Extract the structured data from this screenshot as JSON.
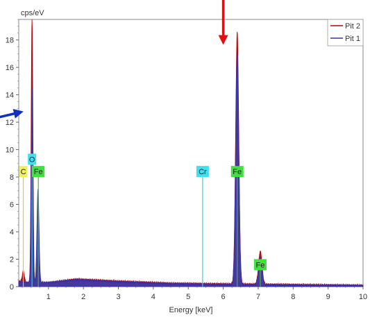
{
  "chart_data": {
    "type": "area",
    "title": "",
    "xlabel": "Energy [keV]",
    "ylabel": "cps/eV",
    "xlim": [
      0.15,
      10
    ],
    "ylim": [
      0,
      19.5
    ],
    "x_ticks": [
      1,
      2,
      3,
      4,
      5,
      6,
      7,
      8,
      9,
      10
    ],
    "y_ticks": [
      0,
      2,
      4,
      6,
      8,
      10,
      12,
      14,
      16,
      18
    ],
    "legend_position": "top-right",
    "series": [
      {
        "name": "Pit 2",
        "color": "#c00000",
        "fill": "#a3142a",
        "peaks": [
          {
            "center": 0.53,
            "height": 19.4,
            "width": 0.025
          },
          {
            "center": 0.7,
            "height": 2.0,
            "width": 0.03
          },
          {
            "center": 0.28,
            "height": 0.8,
            "width": 0.03
          },
          {
            "center": 6.4,
            "height": 18.4,
            "width": 0.045
          },
          {
            "center": 7.06,
            "height": 2.4,
            "width": 0.05
          }
        ],
        "background": [
          [
            0.15,
            0.4
          ],
          [
            0.4,
            0.3
          ],
          [
            1.0,
            0.3
          ],
          [
            1.8,
            0.55
          ],
          [
            3.0,
            0.4
          ],
          [
            4.5,
            0.25
          ],
          [
            6.0,
            0.2
          ],
          [
            8.0,
            0.15
          ],
          [
            10.0,
            0.1
          ]
        ]
      },
      {
        "name": "Pit 1",
        "color": "#3030b0",
        "fill": "#3c3caa",
        "peaks": [
          {
            "center": 0.53,
            "height": 14.2,
            "width": 0.025
          },
          {
            "center": 0.7,
            "height": 6.8,
            "width": 0.03
          },
          {
            "center": 6.4,
            "height": 17.0,
            "width": 0.045
          },
          {
            "center": 7.06,
            "height": 2.0,
            "width": 0.05
          }
        ],
        "background": [
          [
            0.15,
            0.35
          ],
          [
            0.4,
            0.3
          ],
          [
            1.0,
            0.3
          ],
          [
            1.8,
            0.5
          ],
          [
            3.0,
            0.35
          ],
          [
            4.5,
            0.2
          ],
          [
            6.0,
            0.15
          ],
          [
            8.0,
            0.1
          ],
          [
            10.0,
            0.08
          ]
        ]
      }
    ],
    "element_markers": [
      {
        "label": "C",
        "energy": 0.28,
        "box_y": 8.4,
        "color": "#f0f060",
        "line_color": "#d8d030"
      },
      {
        "label": "O",
        "energy": 0.53,
        "box_y": 9.3,
        "color": "#40e0f0",
        "line_color": "#40c8e0"
      },
      {
        "label": "Fe",
        "energy": 0.71,
        "box_y": 8.4,
        "color": "#40e040",
        "line_color": "#30c030"
      },
      {
        "label": "Cr",
        "energy": 5.41,
        "box_y": 8.4,
        "color": "#40e0f0",
        "line_color": "#40c8e0"
      },
      {
        "label": "Fe",
        "energy": 6.4,
        "box_y": 8.4,
        "color": "#40e040",
        "line_color": "#30c030"
      },
      {
        "label": "Fe",
        "energy": 7.06,
        "box_y": 1.6,
        "color": "#40e040",
        "line_color": "#30c030"
      }
    ],
    "annotations": [
      {
        "type": "arrow",
        "color": "#e01010",
        "direction": "down",
        "points_to_x": 6.0,
        "points_to_y": 18.0
      },
      {
        "type": "arrow",
        "color": "#1030c0",
        "direction": "right",
        "points_to_x": 0.15,
        "points_to_y": 12.7
      }
    ]
  }
}
